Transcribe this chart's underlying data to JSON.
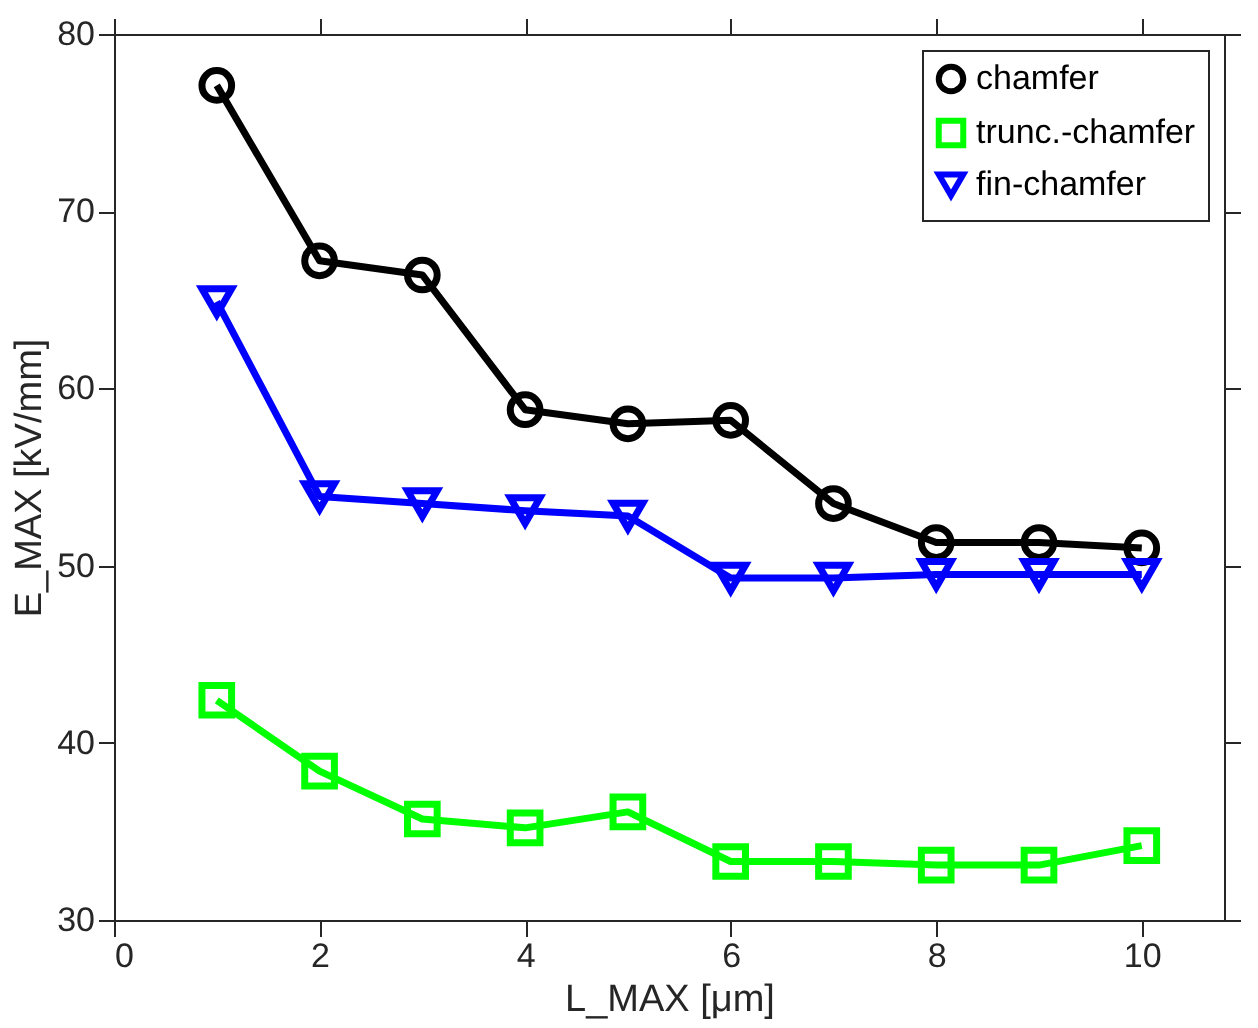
{
  "chart_data": {
    "type": "line",
    "xlabel": "L_MAX [μm]",
    "ylabel": "E_MAX [kV/mm]",
    "x": [
      1,
      2,
      3,
      4,
      5,
      6,
      7,
      8,
      9,
      10
    ],
    "series": [
      {
        "name": "chamfer",
        "color": "#000000",
        "marker": "circle",
        "values": [
          77.1,
          67.2,
          66.4,
          58.8,
          58.0,
          58.2,
          53.5,
          51.3,
          51.3,
          51.0
        ]
      },
      {
        "name": "trunc.-chamfer",
        "color": "#00ff00",
        "marker": "square",
        "values": [
          42.4,
          38.4,
          35.7,
          35.2,
          36.1,
          33.3,
          33.3,
          33.1,
          33.1,
          34.2
        ]
      },
      {
        "name": "fin-chamfer",
        "color": "#0000ff",
        "marker": "triangle",
        "values": [
          64.9,
          53.9,
          53.5,
          53.1,
          52.8,
          49.3,
          49.3,
          49.5,
          49.5,
          49.5
        ]
      }
    ],
    "xlim": [
      0,
      10.8
    ],
    "xticks": [
      0,
      2,
      4,
      6,
      8,
      10
    ],
    "ylim": [
      30,
      80
    ],
    "yticks": [
      30,
      40,
      50,
      60,
      70,
      80
    ],
    "grid": false,
    "legend": "top right",
    "line_style": "solid"
  }
}
